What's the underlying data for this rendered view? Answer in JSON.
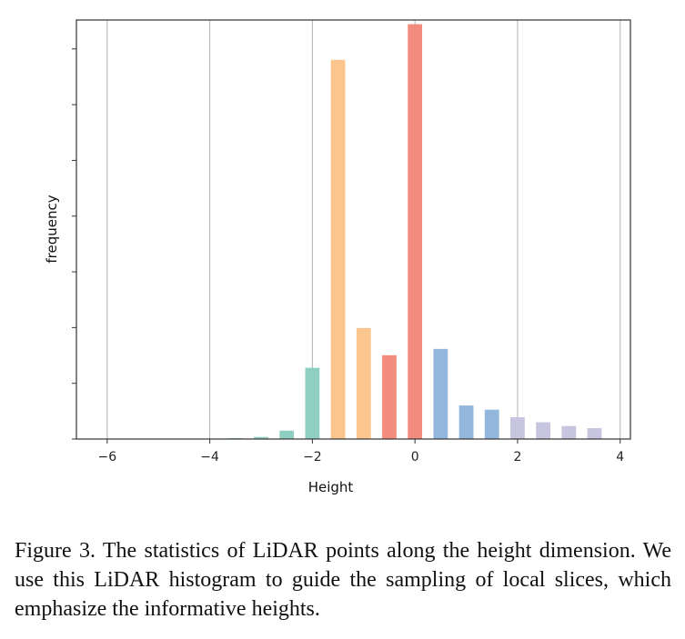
{
  "chart_data": {
    "type": "bar",
    "xlabel": "Height",
    "ylabel": "frequency",
    "xlim": [
      -6.6,
      4.2
    ],
    "ylim": [
      0,
      1.0
    ],
    "xticks": [
      -6,
      -4,
      -2,
      0,
      2,
      4
    ],
    "xtick_labels": [
      "−6",
      "−4",
      "−2",
      "0",
      "2",
      "4"
    ],
    "grid": "vertical",
    "bar_width": 0.28,
    "bars": [
      {
        "x": -3.5,
        "value": 0.002,
        "color": "#8ecfc1"
      },
      {
        "x": -3.0,
        "value": 0.005,
        "color": "#8ecfc1"
      },
      {
        "x": -2.5,
        "value": 0.02,
        "color": "#8ecfc1"
      },
      {
        "x": -2.0,
        "value": 0.17,
        "color": "#8ecfc1"
      },
      {
        "x": -1.5,
        "value": 0.905,
        "color": "#fbc68d"
      },
      {
        "x": -1.0,
        "value": 0.265,
        "color": "#fbc68d"
      },
      {
        "x": -0.5,
        "value": 0.2,
        "color": "#f28c7f"
      },
      {
        "x": 0.0,
        "value": 0.99,
        "color": "#f28c7f"
      },
      {
        "x": 0.5,
        "value": 0.215,
        "color": "#93b6dc"
      },
      {
        "x": 1.0,
        "value": 0.08,
        "color": "#93b6dc"
      },
      {
        "x": 1.5,
        "value": 0.07,
        "color": "#93b6dc"
      },
      {
        "x": 2.0,
        "value": 0.052,
        "color": "#c7c5df"
      },
      {
        "x": 2.5,
        "value": 0.04,
        "color": "#c7c5df"
      },
      {
        "x": 3.0,
        "value": 0.031,
        "color": "#c7c5df"
      },
      {
        "x": 3.5,
        "value": 0.026,
        "color": "#c7c5df"
      }
    ]
  },
  "caption": "Figure 3. The statistics of LiDAR points along the height dimension. We use this LiDAR histogram to guide the sampling of local slices, which emphasize the informative heights."
}
